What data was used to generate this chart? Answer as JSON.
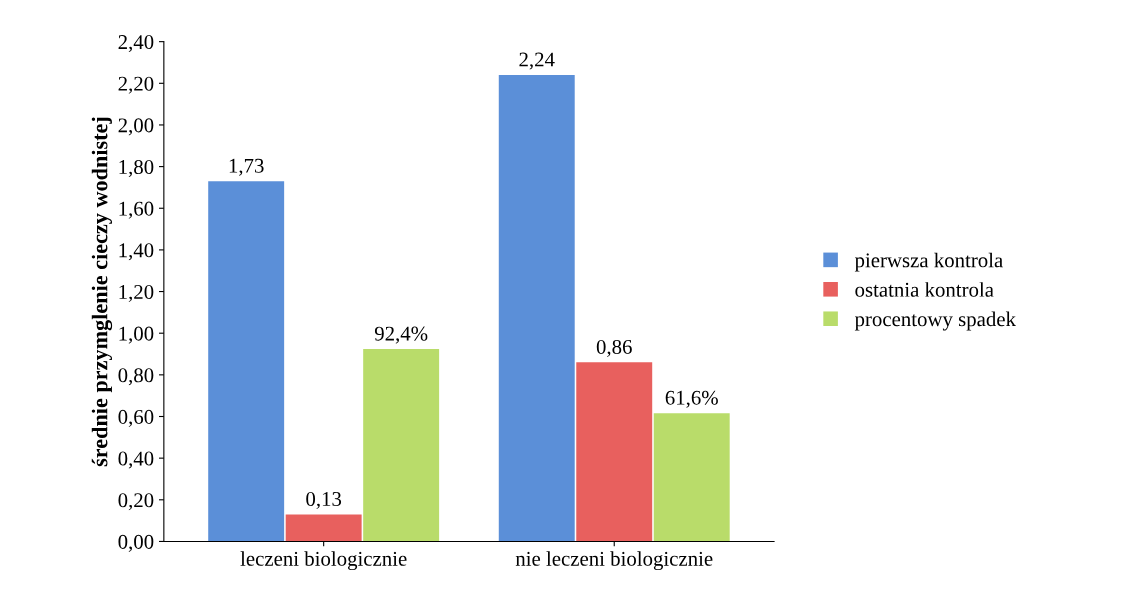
{
  "chart_data": {
    "type": "bar",
    "ylabel": "średnie przymglenie cieczy wodnistej",
    "categories": [
      "leczeni biologicznie",
      "nie leczeni biologicznie"
    ],
    "series": [
      {
        "name": "pierwsza kontrola",
        "color": "#5b8fd8",
        "values": [
          1.73,
          2.24
        ],
        "value_labels": [
          "1,73",
          "2,24"
        ]
      },
      {
        "name": "ostatnia kontrola",
        "color": "#e8605e",
        "values": [
          0.13,
          0.86
        ],
        "value_labels": [
          "0,13",
          "0,86"
        ]
      },
      {
        "name": "procentowy spadek",
        "color": "#b9dc6a",
        "values": [
          0.924,
          0.616
        ],
        "value_labels": [
          "92,4%",
          "61,6%"
        ]
      }
    ],
    "ylim": [
      0,
      2.4
    ],
    "yticks": [
      {
        "value": 0,
        "label": "0,00"
      },
      {
        "value": 0.2,
        "label": "0,20"
      },
      {
        "value": 0.4,
        "label": "0,40"
      },
      {
        "value": 0.6,
        "label": "0,60"
      },
      {
        "value": 0.8,
        "label": "0,80"
      },
      {
        "value": 1.0,
        "label": "1,00"
      },
      {
        "value": 1.2,
        "label": "1,20"
      },
      {
        "value": 1.4,
        "label": "1,40"
      },
      {
        "value": 1.6,
        "label": "1,60"
      },
      {
        "value": 1.8,
        "label": "1,80"
      },
      {
        "value": 2.0,
        "label": "2,00"
      },
      {
        "value": 2.2,
        "label": "2,20"
      },
      {
        "value": 2.4,
        "label": "2,40"
      }
    ],
    "grid": false,
    "legend": "right"
  }
}
